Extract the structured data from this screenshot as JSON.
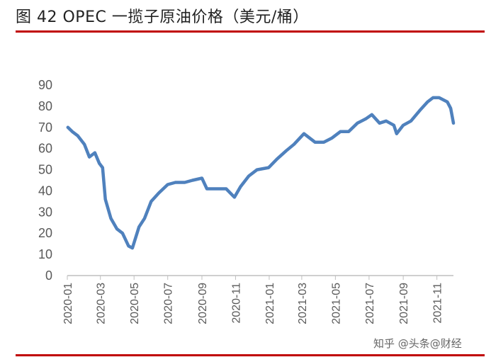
{
  "figure_title": "图 42 OPEC 一揽子原油价格（美元/桶）",
  "watermark": "知乎 @头条@财经",
  "colors": {
    "line": "#4f81bd",
    "rule": "#c00000",
    "axis": "#bfbfbf",
    "text": "#595959"
  },
  "chart_data": {
    "type": "line",
    "title": "",
    "xlabel": "",
    "ylabel": "",
    "ylim": [
      0,
      90
    ],
    "yticks": [
      "0",
      "10",
      "20",
      "30",
      "40",
      "50",
      "60",
      "70",
      "80",
      "90"
    ],
    "xticks": [
      "2020-01",
      "2020-03",
      "2020-05",
      "2020-07",
      "2020-09",
      "2020-11",
      "2021-01",
      "2021-03",
      "2021-05",
      "2021-07",
      "2021-09",
      "2021-11"
    ],
    "grid": false,
    "legend": "none",
    "x": [
      "2020-01-02",
      "2020-01-10",
      "2020-01-20",
      "2020-02-01",
      "2020-02-10",
      "2020-02-20",
      "2020-02-28",
      "2020-03-05",
      "2020-03-10",
      "2020-03-20",
      "2020-03-31",
      "2020-04-10",
      "2020-04-21",
      "2020-04-28",
      "2020-05-10",
      "2020-05-20",
      "2020-06-01",
      "2020-06-15",
      "2020-07-01",
      "2020-07-15",
      "2020-08-01",
      "2020-08-15",
      "2020-09-01",
      "2020-09-10",
      "2020-09-20",
      "2020-10-01",
      "2020-10-15",
      "2020-10-30",
      "2020-11-10",
      "2020-11-25",
      "2020-12-10",
      "2020-12-31",
      "2021-01-15",
      "2021-02-01",
      "2021-02-15",
      "2021-03-05",
      "2021-03-15",
      "2021-03-25",
      "2021-04-10",
      "2021-04-25",
      "2021-05-10",
      "2021-05-25",
      "2021-06-10",
      "2021-06-25",
      "2021-07-06",
      "2021-07-20",
      "2021-08-01",
      "2021-08-15",
      "2021-08-20",
      "2021-09-01",
      "2021-09-15",
      "2021-10-01",
      "2021-10-15",
      "2021-10-25",
      "2021-11-05",
      "2021-11-20",
      "2021-11-26",
      "2021-12-01"
    ],
    "values": [
      70,
      68,
      66,
      62,
      56,
      58,
      53,
      51,
      36,
      27,
      22,
      20,
      14,
      13,
      23,
      27,
      35,
      39,
      43,
      44,
      44,
      45,
      46,
      41,
      41,
      41,
      41,
      37,
      42,
      47,
      50,
      51,
      55,
      59,
      62,
      67,
      65,
      63,
      63,
      65,
      68,
      68,
      72,
      74,
      76,
      72,
      73,
      71,
      67,
      71,
      73,
      78,
      82,
      84,
      84,
      82,
      79,
      72
    ]
  }
}
